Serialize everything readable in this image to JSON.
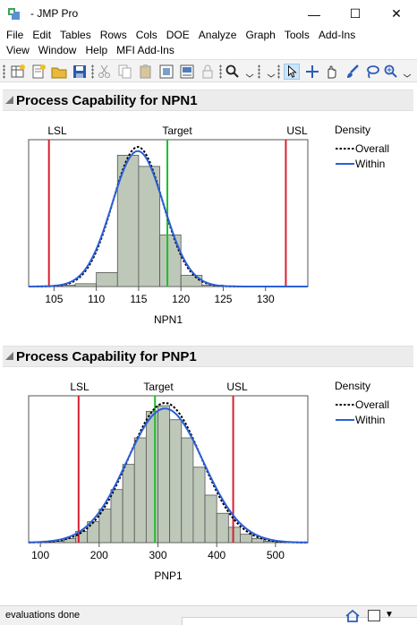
{
  "window": {
    "title": "- JMP Pro",
    "minimize_glyph": "—",
    "maximize_glyph": "☐",
    "close_glyph": "✕"
  },
  "menu": {
    "row1": [
      "File",
      "Edit",
      "Tables",
      "Rows",
      "Cols",
      "DOE",
      "Analyze",
      "Graph",
      "Tools",
      "Add-Ins"
    ],
    "row2": [
      "View",
      "Window",
      "Help",
      "MFI Add-Ins"
    ]
  },
  "toolbar": {
    "icons": [
      "new-data-table-icon",
      "new-script-icon",
      "open-icon",
      "save-icon",
      "cut-icon",
      "copy-icon",
      "paste-icon",
      "image-icon",
      "journal-icon",
      "lock-icon",
      "search-icon",
      "arrow-select-icon",
      "crosshair-icon",
      "hand-icon",
      "brush-icon",
      "lasso-icon",
      "magnifier-icon"
    ]
  },
  "reports": [
    {
      "title": "Process Capability for NPN1",
      "limit_labels": {
        "lsl": "LSL",
        "target": "Target",
        "usl": "USL"
      },
      "legend": {
        "title": "Density",
        "overall": "Overall",
        "within": "Within"
      }
    },
    {
      "title": "Process Capability for PNP1",
      "limit_labels": {
        "lsl": "LSL",
        "target": "Target",
        "usl": "USL"
      },
      "legend": {
        "title": "Density",
        "overall": "Overall",
        "within": "Within"
      }
    }
  ],
  "chart_data": [
    {
      "type": "bar",
      "xlabel": "NPN1",
      "xlim": [
        102,
        135
      ],
      "xticks": [
        105,
        110,
        115,
        120,
        125,
        130
      ],
      "bin_width": 2.5,
      "bins": [
        {
          "x0": 102.5,
          "count": 0.3
        },
        {
          "x0": 105,
          "count": 1
        },
        {
          "x0": 107.5,
          "count": 2
        },
        {
          "x0": 110,
          "count": 10
        },
        {
          "x0": 112.5,
          "count": 94
        },
        {
          "x0": 115,
          "count": 86
        },
        {
          "x0": 117.5,
          "count": 37
        },
        {
          "x0": 120,
          "count": 8
        },
        {
          "x0": 122.5,
          "count": 1
        },
        {
          "x0": 125,
          "count": 0.3
        }
      ],
      "ylim": [
        0,
        100
      ],
      "lsl": 104.4,
      "target": 118.4,
      "usl": 132.4,
      "overall": {
        "mean": 114.9,
        "sd": 2.95,
        "peak": 100
      },
      "within": {
        "mean": 114.9,
        "sd": 3.05,
        "peak": 97
      },
      "colors": {
        "bars": "#bdc8b9",
        "bar_edge": "#555555",
        "lsl": "#d8202f",
        "usl": "#d8202f",
        "target": "#1bbf29",
        "overall": "#000000",
        "within": "#2b5fd9"
      },
      "legend_position": "right"
    },
    {
      "type": "bar",
      "xlabel": "PNP1",
      "xlim": [
        80,
        555
      ],
      "xticks": [
        100,
        200,
        300,
        400,
        500
      ],
      "bin_width": 20,
      "bins": [
        {
          "x0": 100,
          "count": 0.5
        },
        {
          "x0": 120,
          "count": 1
        },
        {
          "x0": 140,
          "count": 3
        },
        {
          "x0": 160,
          "count": 8
        },
        {
          "x0": 180,
          "count": 15
        },
        {
          "x0": 200,
          "count": 24
        },
        {
          "x0": 220,
          "count": 38
        },
        {
          "x0": 240,
          "count": 56
        },
        {
          "x0": 260,
          "count": 75
        },
        {
          "x0": 280,
          "count": 94
        },
        {
          "x0": 300,
          "count": 98
        },
        {
          "x0": 320,
          "count": 88
        },
        {
          "x0": 340,
          "count": 75
        },
        {
          "x0": 360,
          "count": 54
        },
        {
          "x0": 380,
          "count": 34
        },
        {
          "x0": 400,
          "count": 21
        },
        {
          "x0": 420,
          "count": 11
        },
        {
          "x0": 440,
          "count": 6
        },
        {
          "x0": 460,
          "count": 3
        },
        {
          "x0": 480,
          "count": 1
        },
        {
          "x0": 500,
          "count": 0.5
        },
        {
          "x0": 520,
          "count": 0.3
        }
      ],
      "ylim": [
        0,
        100
      ],
      "lsl": 165,
      "target": 295,
      "usl": 428,
      "overall": {
        "mean": 312,
        "sd": 62,
        "peak": 100
      },
      "within": {
        "mean": 312,
        "sd": 65,
        "peak": 96
      },
      "colors": {
        "bars": "#bdc8b9",
        "bar_edge": "#555555",
        "lsl": "#d8202f",
        "usl": "#d8202f",
        "target": "#1bbf29",
        "overall": "#000000",
        "within": "#2b5fd9"
      },
      "legend_position": "right"
    }
  ],
  "status": {
    "text": "evaluations done",
    "icons": [
      "home-icon",
      "window-icon",
      "dropdown-icon"
    ]
  }
}
